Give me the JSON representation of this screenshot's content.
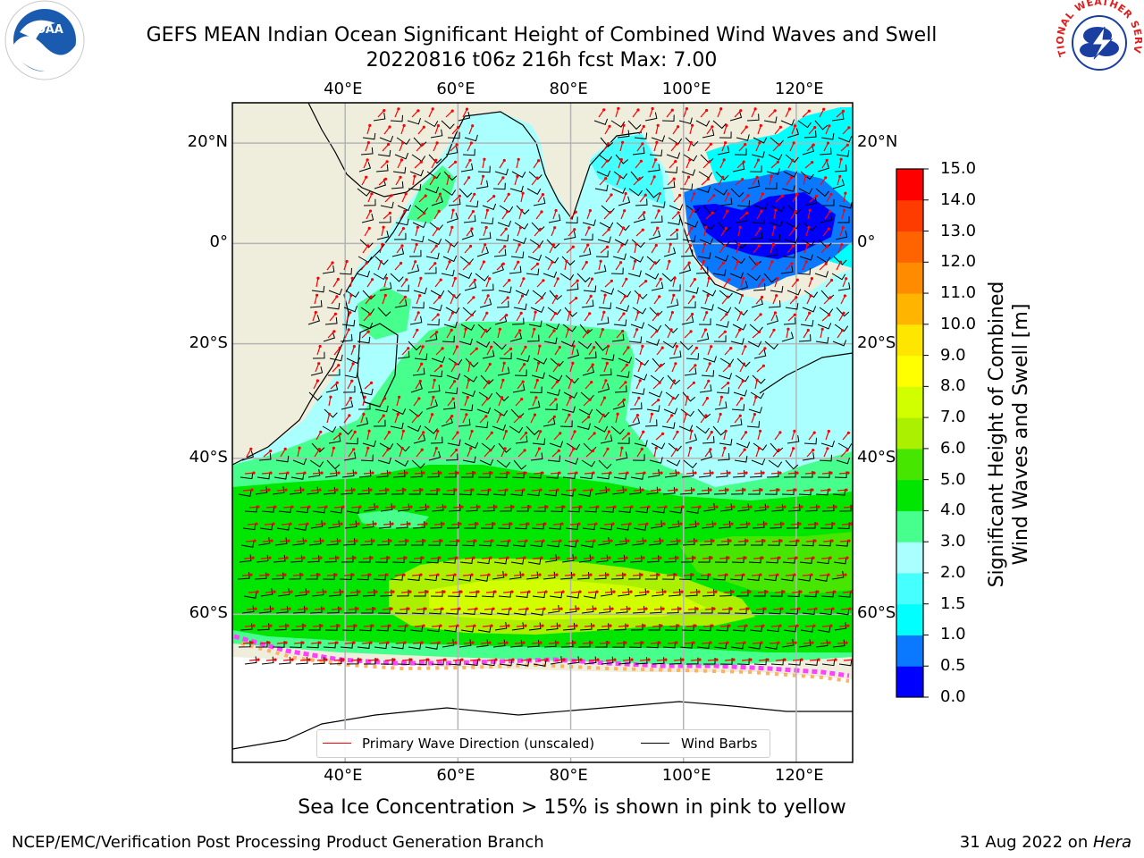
{
  "header": {
    "title_line1": "GEFS MEAN Indian Ocean Significant Height of Combined Wind Waves and Swell",
    "title_line2": "20220816 t06z 216h fcst   Max: 7.00"
  },
  "logos": {
    "left_text": "NOAA",
    "right_text": "NATIONAL WEATHER SERVICE",
    "noaa_blue": "#1a5bb0",
    "nws_red": "#e02020"
  },
  "axes": {
    "lon_ticks": [
      "40°E",
      "60°E",
      "80°E",
      "100°E",
      "120°E"
    ],
    "lon_values": [
      40,
      60,
      80,
      100,
      120
    ],
    "lat_ticks": [
      "20°N",
      "0°",
      "20°S",
      "40°S",
      "60°S"
    ],
    "lat_values": [
      20,
      0,
      -20,
      -40,
      -60
    ]
  },
  "colorbar": {
    "label_line1": "Significant Height of Combined",
    "label_line2": "Wind Waves and Swell [m]",
    "ticks": [
      "0.0",
      "0.5",
      "1.0",
      "1.5",
      "2.0",
      "3.0",
      "4.0",
      "5.0",
      "6.0",
      "7.0",
      "8.0",
      "9.0",
      "10.0",
      "11.0",
      "12.0",
      "13.0",
      "14.0",
      "15.0"
    ],
    "colors": [
      "#0000ff",
      "#0a78ff",
      "#00ffff",
      "#46ffff",
      "#aaffff",
      "#46ff8c",
      "#00e600",
      "#46e600",
      "#aaf000",
      "#d2ff00",
      "#ffff00",
      "#ffe600",
      "#ffb400",
      "#ff8c00",
      "#ff6400",
      "#ff3c00",
      "#ff0000"
    ]
  },
  "legend": {
    "wave_label": "Primary Wave Direction (unscaled)",
    "wind_label": "Wind Barbs",
    "wave_color": "#ff0000",
    "wind_color": "#000000"
  },
  "footer": {
    "note": "Sea Ice Concentration > 15% is shown in pink to yellow",
    "left": "NCEP/EMC/Verification Post Processing Product Generation Branch",
    "right_prefix": "31 Aug 2022 on ",
    "right_machine": "Hera"
  },
  "colors": {
    "land": "#efeedd",
    "grid": "#b4b4b4",
    "ice_pink": "#ff40ff",
    "ice_orange": "#ffb060"
  }
}
